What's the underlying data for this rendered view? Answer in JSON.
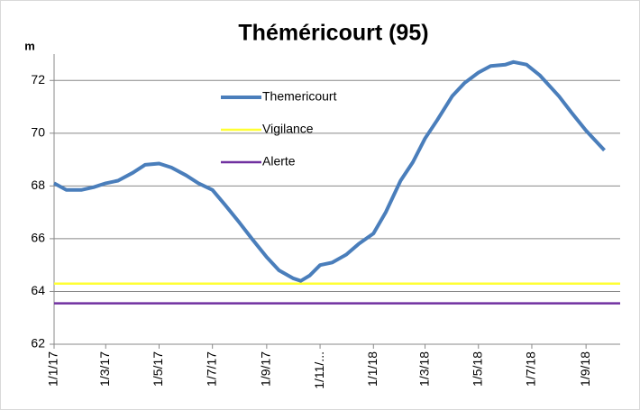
{
  "chart_data": {
    "type": "line",
    "title": "Théméricourt (95)",
    "y_label": "m",
    "xlim": [
      "2017-01-01",
      "2018-10-10"
    ],
    "xticks": [
      {
        "value": "2017-01-01",
        "label": "1/1/17"
      },
      {
        "value": "2017-03-01",
        "label": "1/3/17"
      },
      {
        "value": "2017-05-01",
        "label": "1/5/17"
      },
      {
        "value": "2017-07-01",
        "label": "1/7/17"
      },
      {
        "value": "2017-09-01",
        "label": "1/9/17"
      },
      {
        "value": "2017-11-01",
        "label": "1/11/..."
      },
      {
        "value": "2018-01-01",
        "label": "1/1/18"
      },
      {
        "value": "2018-03-01",
        "label": "1/3/18"
      },
      {
        "value": "2018-05-01",
        "label": "1/5/18"
      },
      {
        "value": "2018-07-01",
        "label": "1/7/18"
      },
      {
        "value": "2018-09-01",
        "label": "1/9/18"
      }
    ],
    "ylim": [
      62,
      73
    ],
    "yticks": [
      62,
      64,
      66,
      68,
      70,
      72
    ],
    "grid": true,
    "series": [
      {
        "name": "Themericourt",
        "color": "#4a7ebb",
        "x": [
          "2017-01-01",
          "2017-01-15",
          "2017-02-01",
          "2017-02-15",
          "2017-03-01",
          "2017-03-15",
          "2017-04-01",
          "2017-04-15",
          "2017-05-01",
          "2017-05-15",
          "2017-06-01",
          "2017-06-15",
          "2017-07-01",
          "2017-07-15",
          "2017-08-01",
          "2017-08-15",
          "2017-09-01",
          "2017-09-15",
          "2017-10-01",
          "2017-10-10",
          "2017-10-20",
          "2017-11-01",
          "2017-11-15",
          "2017-12-01",
          "2017-12-15",
          "2018-01-01",
          "2018-01-15",
          "2018-02-01",
          "2018-02-15",
          "2018-03-01",
          "2018-03-15",
          "2018-04-01",
          "2018-04-15",
          "2018-05-01",
          "2018-05-15",
          "2018-06-01",
          "2018-06-10",
          "2018-06-25",
          "2018-07-10",
          "2018-08-01",
          "2018-08-15",
          "2018-09-01",
          "2018-09-15",
          "2018-09-22"
        ],
        "values": [
          68.1,
          67.85,
          67.85,
          67.95,
          68.1,
          68.2,
          68.5,
          68.8,
          68.85,
          68.7,
          68.4,
          68.1,
          67.85,
          67.3,
          66.6,
          66.0,
          65.3,
          64.8,
          64.5,
          64.4,
          64.6,
          65.0,
          65.1,
          65.4,
          65.8,
          66.2,
          67.0,
          68.2,
          68.9,
          69.8,
          70.5,
          71.4,
          71.9,
          72.3,
          72.55,
          72.6,
          72.7,
          72.6,
          72.2,
          71.4,
          70.8,
          70.1,
          69.6,
          69.35
        ]
      },
      {
        "name": "Vigilance",
        "color": "#ffff33",
        "x": [
          "2017-01-01",
          "2018-10-10"
        ],
        "values": [
          64.3,
          64.3
        ]
      },
      {
        "name": "Alerte",
        "color": "#7030a0",
        "x": [
          "2017-01-01",
          "2018-10-10"
        ],
        "values": [
          63.55,
          63.55
        ]
      }
    ]
  }
}
